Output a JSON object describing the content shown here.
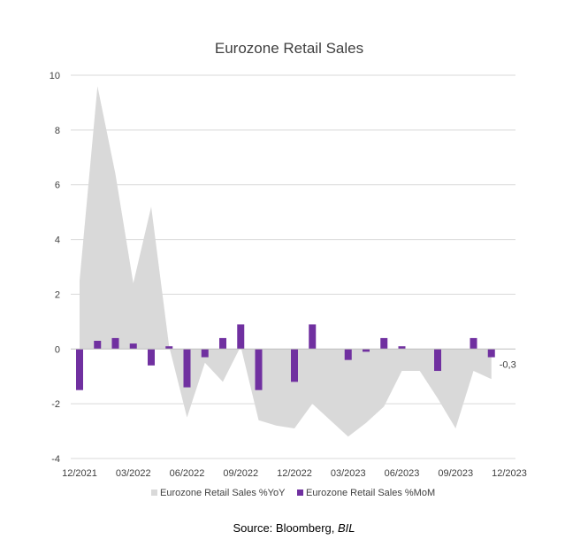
{
  "chart_data": {
    "type": "bar",
    "title": "Eurozone Retail Sales",
    "source_prefix": "Source: Bloomberg, ",
    "source_italic": "BIL",
    "ylim": [
      -4,
      10
    ],
    "yticks": [
      -4,
      -2,
      0,
      2,
      4,
      6,
      8,
      10
    ],
    "x_tick_labels": [
      "12/2021",
      "03/2022",
      "06/2022",
      "09/2022",
      "12/2022",
      "03/2023",
      "06/2023",
      "09/2023",
      "12/2023"
    ],
    "x_tick_months": [
      0,
      3,
      6,
      9,
      12,
      15,
      18,
      21,
      24
    ],
    "months": [
      "12/2021",
      "01/2022",
      "02/2022",
      "03/2022",
      "04/2022",
      "05/2022",
      "06/2022",
      "07/2022",
      "08/2022",
      "09/2022",
      "10/2022",
      "11/2022",
      "12/2022",
      "01/2023",
      "02/2023",
      "03/2023",
      "04/2023",
      "05/2023",
      "06/2023",
      "07/2023",
      "08/2023",
      "09/2023",
      "10/2023",
      "11/2023",
      "12/2023"
    ],
    "grid": true,
    "legend_position": "bottom",
    "series": [
      {
        "name": "Eurozone Retail Sales %YoY",
        "kind": "area",
        "color": "#d9d9d9",
        "values": [
          2.5,
          9.6,
          6.4,
          2.4,
          5.2,
          0.1,
          -2.5,
          -0.5,
          -1.2,
          0.1,
          -2.6,
          -2.8,
          -2.9,
          -2.0,
          -2.6,
          -3.2,
          -2.7,
          -2.1,
          -0.8,
          -0.8,
          -1.8,
          -2.9,
          -0.8,
          -1.1
        ]
      },
      {
        "name": "Eurozone Retail Sales %MoM",
        "kind": "bar",
        "color": "#7030a0",
        "values": [
          -1.5,
          0.3,
          0.4,
          0.2,
          -0.6,
          0.1,
          -1.4,
          -0.3,
          0.4,
          0.9,
          -1.5,
          null,
          -1.2,
          0.9,
          null,
          -0.4,
          -0.1,
          0.4,
          0.1,
          null,
          -0.8,
          null,
          0.4,
          -0.3
        ]
      }
    ],
    "annotations": [
      {
        "series": 1,
        "index": 23,
        "text": "-0,3"
      }
    ]
  }
}
